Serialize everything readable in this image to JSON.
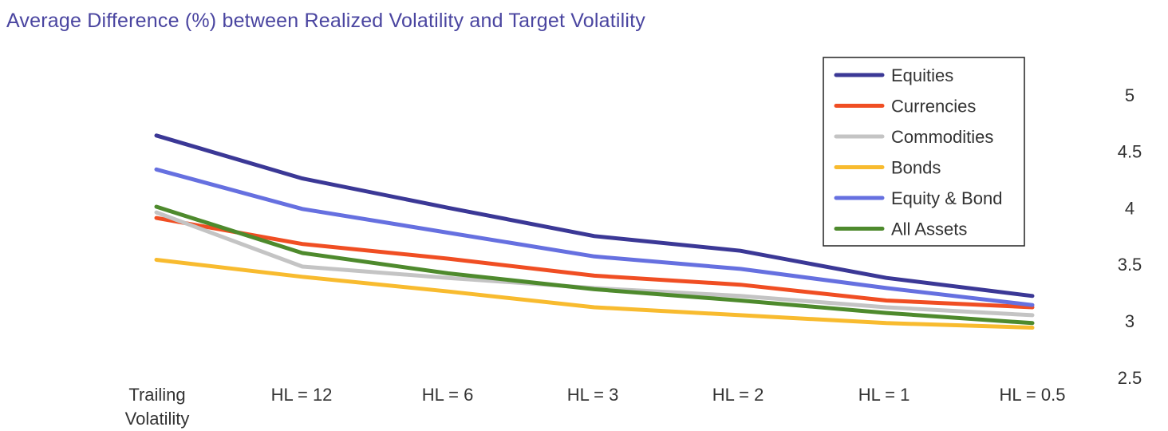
{
  "chart_data": {
    "type": "line",
    "title": "Average Difference (%) between Realized Volatility and Target Volatility",
    "xlabel": "",
    "ylabel": "",
    "categories": [
      [
        "Trailing",
        "Volatility"
      ],
      [
        "HL = 12"
      ],
      [
        "HL = 6"
      ],
      [
        "HL = 3"
      ],
      [
        "HL = 2"
      ],
      [
        "HL = 1"
      ],
      [
        "HL = 0.5"
      ]
    ],
    "ylim": [
      2.5,
      5
    ],
    "yticks": [
      "2.5",
      "3",
      "3.5",
      "4",
      "4.5",
      "5"
    ],
    "y_axis_side": "right",
    "grid": false,
    "legend_position": "top-right",
    "series": [
      {
        "name": "Equities",
        "color": "#3b3896",
        "values": [
          4.64,
          4.26,
          4.0,
          3.75,
          3.62,
          3.38,
          3.22
        ]
      },
      {
        "name": "Currencies",
        "color": "#f04e23",
        "values": [
          3.91,
          3.68,
          3.55,
          3.4,
          3.32,
          3.18,
          3.12
        ]
      },
      {
        "name": "Commodities",
        "color": "#c4c4c4",
        "values": [
          3.96,
          3.48,
          3.38,
          3.29,
          3.22,
          3.12,
          3.05
        ]
      },
      {
        "name": "Bonds",
        "color": "#f8bb2f",
        "values": [
          3.54,
          3.39,
          3.26,
          3.12,
          3.05,
          2.98,
          2.94
        ]
      },
      {
        "name": "Equity & Bond",
        "color": "#6670e0",
        "values": [
          4.34,
          3.99,
          3.78,
          3.57,
          3.46,
          3.29,
          3.14
        ]
      },
      {
        "name": "All Assets",
        "color": "#4e8a2d",
        "values": [
          4.01,
          3.6,
          3.42,
          3.28,
          3.18,
          3.07,
          2.98
        ]
      }
    ]
  }
}
